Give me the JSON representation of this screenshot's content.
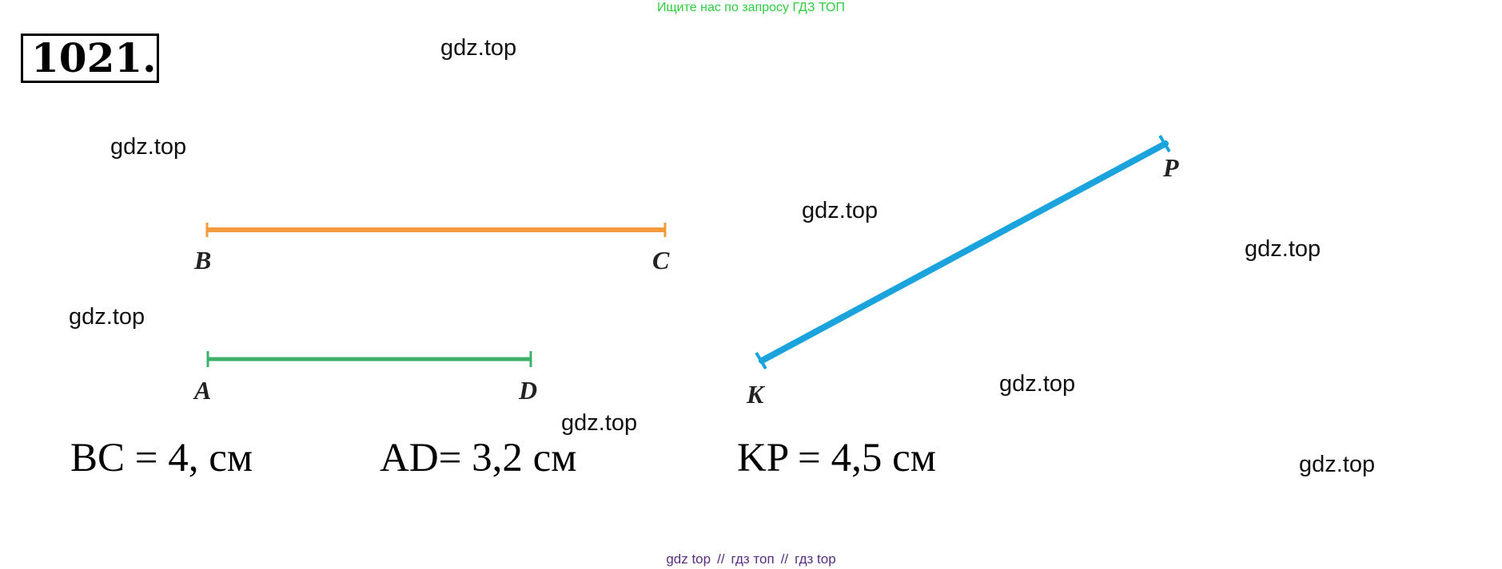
{
  "banner": "Ищите нас по запросу ГДЗ ТОП",
  "problem_number": "1021.",
  "watermarks": [
    "gdz.top",
    "gdz.top",
    "gdz.top",
    "gdz.top",
    "gdz.top",
    "gdz.top",
    "gdz.top",
    "gdz.top"
  ],
  "segments": [
    {
      "name": "BC",
      "start": "B",
      "end": "C",
      "color": "#f39a3c"
    },
    {
      "name": "AD",
      "start": "A",
      "end": "D",
      "color": "#3cb06a"
    },
    {
      "name": "KP",
      "start": "K",
      "end": "P",
      "color": "#1aa3dc"
    }
  ],
  "measurements": [
    "BC = 4, см",
    "AD= 3,2 см",
    "KP = 4,5 см"
  ],
  "footer": {
    "left": "gdz top",
    "sep1": "//",
    "middle": "гдз топ",
    "sep2": "//",
    "right": "гдз top"
  }
}
